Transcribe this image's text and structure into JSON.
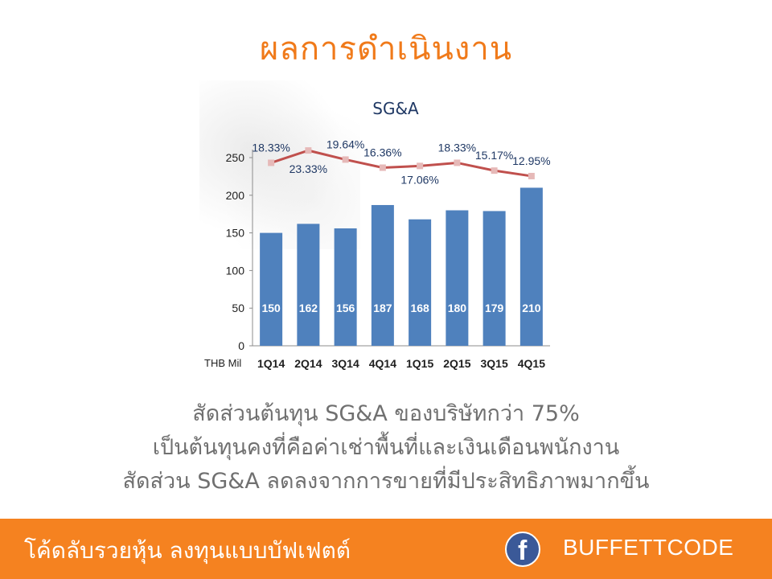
{
  "page_title": "ผลการดำเนินงาน",
  "chart_data": {
    "type": "bar",
    "title": "SG&A",
    "unit_label": "THB Mil",
    "categories": [
      "1Q14",
      "2Q14",
      "3Q14",
      "4Q14",
      "1Q15",
      "2Q15",
      "3Q15",
      "4Q15"
    ],
    "values": [
      150,
      162,
      156,
      187,
      168,
      180,
      179,
      210
    ],
    "value_labels": [
      "150",
      "162",
      "156",
      "187",
      "168",
      "180",
      "179",
      "210"
    ],
    "ylim": [
      0,
      250
    ],
    "yticks": [
      0,
      50,
      100,
      150,
      200,
      250
    ],
    "grid": false,
    "bar_color": "#4f81bd",
    "line_series": {
      "type": "line",
      "values": [
        18.33,
        23.33,
        19.64,
        16.36,
        17.06,
        18.33,
        15.17,
        12.95
      ],
      "labels": [
        "18.33%",
        "23.33%",
        "19.64%",
        "16.36%",
        "17.06%",
        "18.33%",
        "15.17%",
        "12.95%"
      ],
      "line_color": "#c0504d",
      "marker_color": "#e6b9b8"
    }
  },
  "body_lines": [
    "สัดส่วนต้นทุน SG&A ของบริษัทกว่า 75%",
    "เป็นต้นทุนคงที่คือค่าเช่าพื้นที่และเงินเดือนพนักงาน",
    "สัดส่วน SG&A ลดลงจากการขายที่มีประสิทธิภาพมากขึ้น"
  ],
  "footer": {
    "tagline": "โค้ดลับรวยหุ้น ลงทุนแบบบัฟเฟตต์",
    "icon": "facebook-icon",
    "brand": "BUFFETTCODE",
    "background": "#f58220"
  }
}
